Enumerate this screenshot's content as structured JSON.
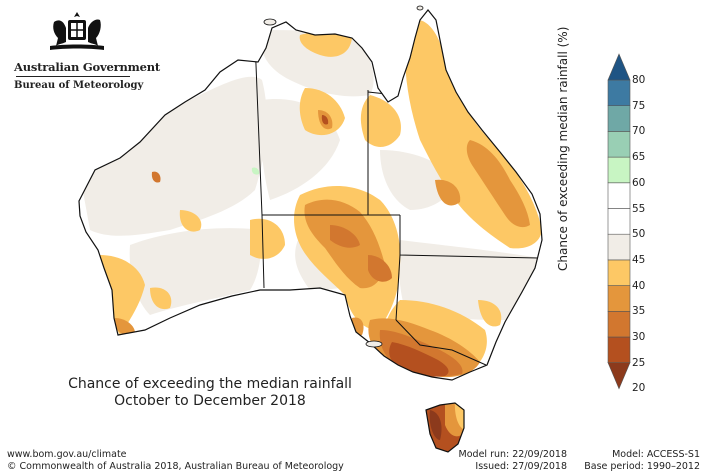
{
  "header": {
    "government": "Australian Government",
    "bureau": "Bureau of Meteorology"
  },
  "title": {
    "line1": "Chance of exceeding the median rainfall",
    "line2": "October to December 2018"
  },
  "footer": {
    "website": "www.bom.gov.au/climate",
    "copyright": "© Commonwealth of Australia 2018, Australian Bureau of Meteorology",
    "model_run": "Model run: 22/09/2018",
    "issued": "Issued: 27/09/2018",
    "model": "Model: ACCESS-S1",
    "base_period": "Base period: 1990–2012"
  },
  "legend": {
    "label": "Chance of exceeding median rainfall (%)",
    "ticks": [
      "80",
      "75",
      "70",
      "65",
      "60",
      "55",
      "50",
      "45",
      "40",
      "35",
      "30",
      "25",
      "20"
    ],
    "bins": [
      {
        "range": "<20",
        "color": "#8c3a1c"
      },
      {
        "range": "20-25",
        "color": "#b4501f"
      },
      {
        "range": "25-30",
        "color": "#d2772f"
      },
      {
        "range": "30-35",
        "color": "#e4963c"
      },
      {
        "range": "35-40",
        "color": "#fdc865"
      },
      {
        "range": "40-45",
        "color": "#f1ede7"
      },
      {
        "range": "45-55",
        "color": "#ffffff"
      },
      {
        "range": "55-60",
        "color": "#ffffff"
      },
      {
        "range": "60-65",
        "color": "#c8f5c3"
      },
      {
        "range": "65-70",
        "color": "#99cfb4"
      },
      {
        "range": "70-75",
        "color": "#6fa8a6"
      },
      {
        "range": "75-80",
        "color": "#3d7aa2"
      },
      {
        "range": ">80",
        "color": "#1f5484"
      }
    ]
  }
}
